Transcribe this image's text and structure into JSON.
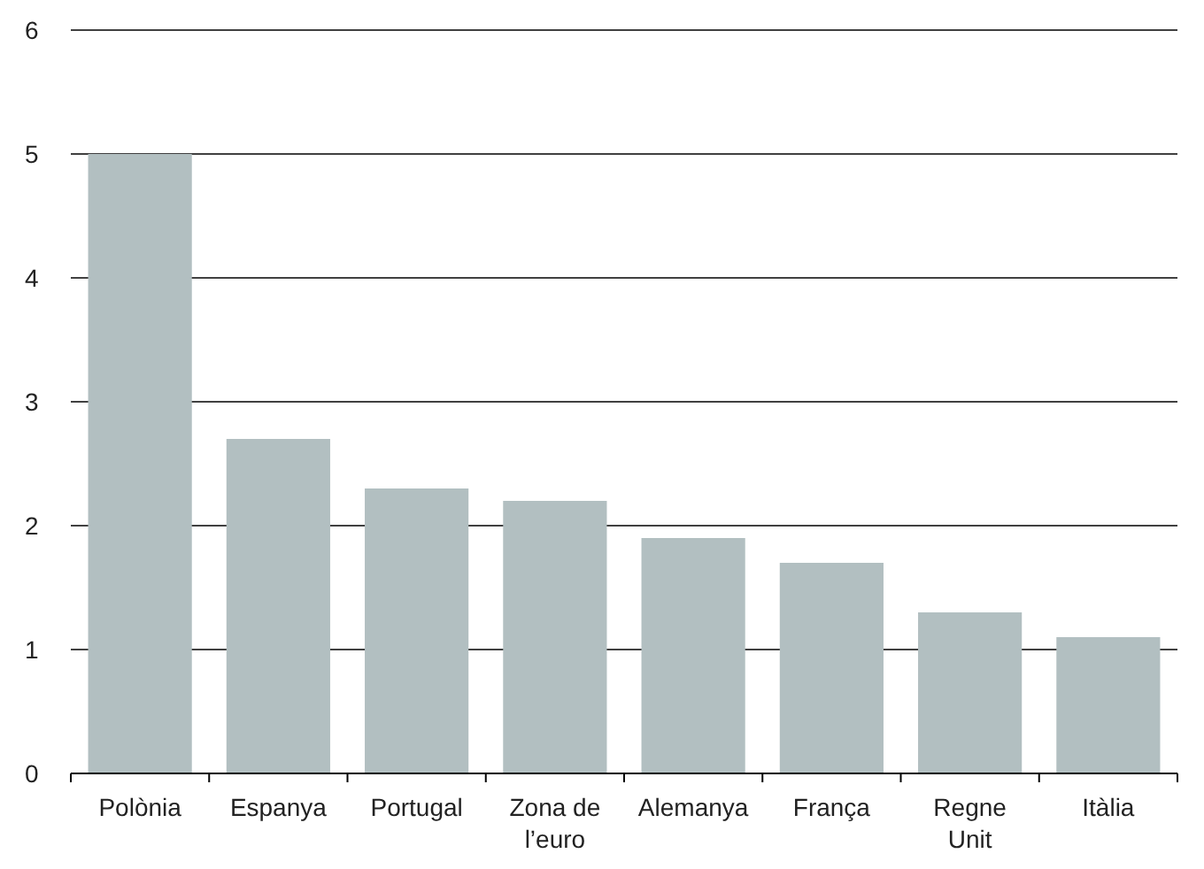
{
  "chart_data": {
    "type": "bar",
    "categories": [
      "Polònia",
      "Espanya",
      "Portugal",
      "Zona de l’euro",
      "Alemanya",
      "França",
      "Regne Unit",
      "Itàlia"
    ],
    "values": [
      5.0,
      2.7,
      2.3,
      2.2,
      1.9,
      1.7,
      1.3,
      1.1
    ],
    "color": "#b2bfc1",
    "ylim": [
      0,
      6
    ],
    "yticks": [
      0,
      1,
      2,
      3,
      4,
      5,
      6
    ],
    "grid": "y"
  }
}
